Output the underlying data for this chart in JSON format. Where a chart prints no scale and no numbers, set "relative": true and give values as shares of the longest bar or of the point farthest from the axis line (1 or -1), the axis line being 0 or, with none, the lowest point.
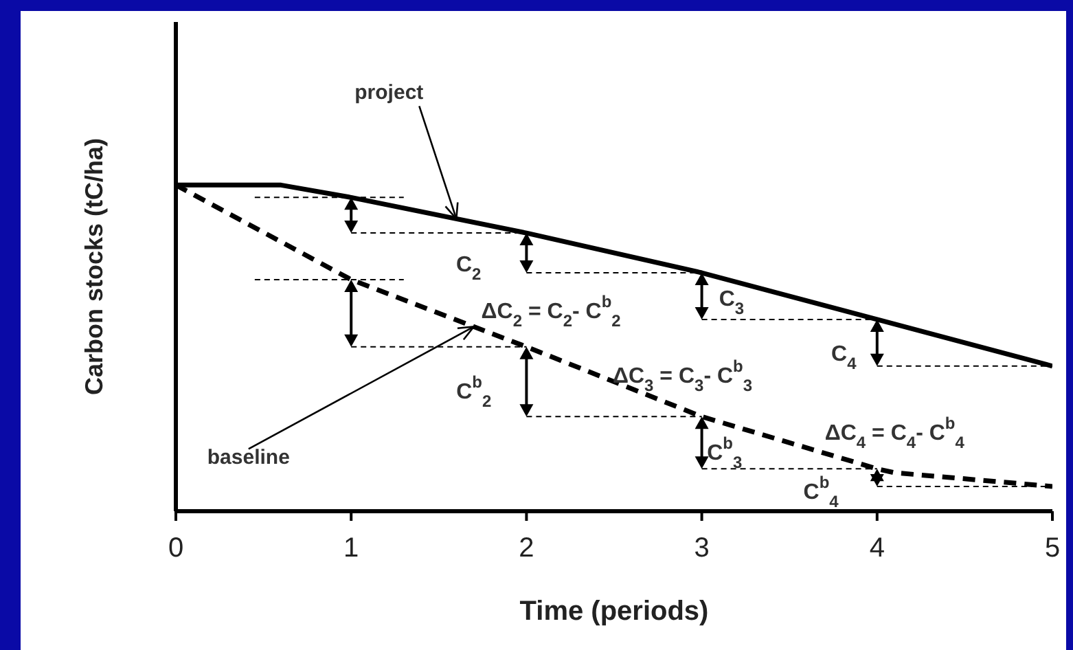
{
  "chart_data": {
    "type": "line",
    "xlabel": "Time (periods)",
    "ylabel": "Carbon stocks (tC/ha)",
    "relative": true,
    "xlim": [
      0,
      5
    ],
    "xticks": [
      0,
      1,
      2,
      3,
      4,
      5
    ],
    "legend": false,
    "grid": false,
    "marker": "none",
    "series": [
      {
        "color": "#000000",
        "line_style": "solid",
        "x": [
          0,
          0.6,
          1,
          2,
          3,
          4,
          5
        ],
        "values": [
          1,
          1,
          0.962,
          0.853,
          0.731,
          0.588,
          0.445
        ]
      },
      {
        "color": "#000000",
        "line_style": "dashed",
        "x": [
          0,
          1,
          2,
          3,
          4,
          4.1,
          5
        ],
        "values": [
          1,
          0.71,
          0.504,
          0.29,
          0.13,
          0.118,
          0.076
        ]
      }
    ],
    "annotations": [
      "C$_{2}$",
      "ΔC$_{2}$ = C$_{2}$- C$^{b}$$_{2}$",
      "C$_{3}$",
      "C$_{4}$",
      "C$^{b}$$_{2}$",
      "ΔC$_{3}$ = C$_{3}$- C$^{b}$$_{3}$",
      "C$^{b}$$_{3}$",
      "ΔC$_{4}$ = C$_{4}$- C$^{b}$$_{4}$",
      "C$^{b}$$_{4}$",
      "project",
      "baseline"
    ]
  }
}
